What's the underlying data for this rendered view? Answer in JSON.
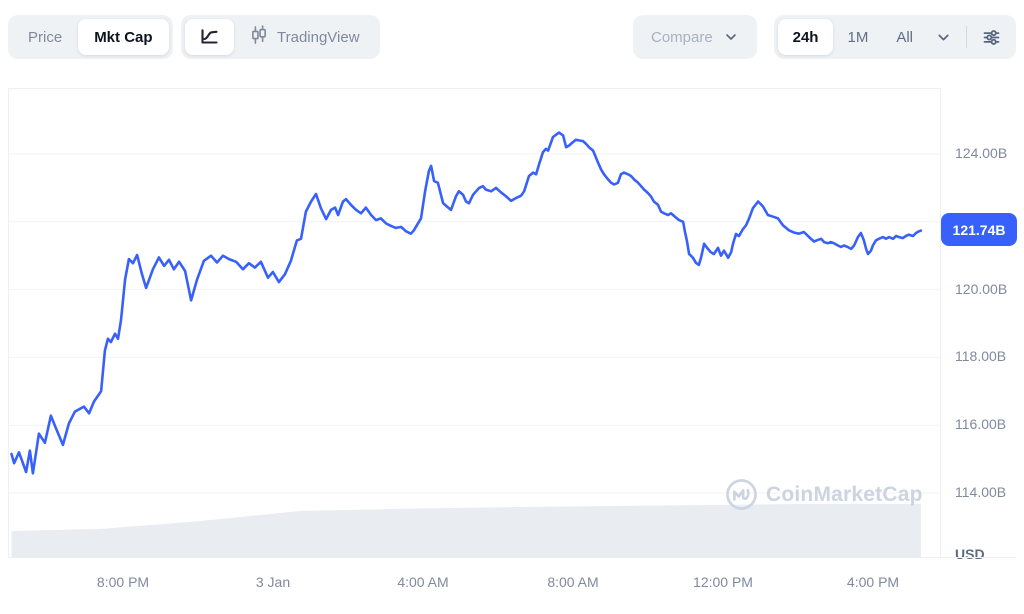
{
  "toolbar": {
    "metric_toggle": {
      "options": [
        "Price",
        "Mkt Cap"
      ],
      "active": "Mkt Cap"
    },
    "chart_style_toggle": {
      "active": "line-chart",
      "tradingview_label": "TradingView"
    },
    "compare": {
      "label": "Compare"
    },
    "range_selector": {
      "options": [
        "24h",
        "1M",
        "All"
      ],
      "active": "24h"
    }
  },
  "y_axis": {
    "ticks": [
      {
        "value": 124,
        "label": "124.00B"
      },
      {
        "value": 120,
        "label": "120.00B"
      },
      {
        "value": 118,
        "label": "118.00B"
      },
      {
        "value": 116,
        "label": "116.00B"
      },
      {
        "value": 114,
        "label": "114.00B"
      }
    ],
    "current": {
      "value": 121.74,
      "label": "121.74B"
    },
    "unit_label": "USD"
  },
  "watermark_text": "CoinMarketCap",
  "colors": {
    "line": "#3861fb",
    "badge_bg": "#3861fb",
    "grid": "#f0f2f5",
    "volume_fill": "#e9ecf1",
    "axis_text": "#808a9d",
    "pill_bg": "#eff2f5",
    "active_text": "#0d1421",
    "watermark": "#ccd4e0"
  },
  "chart_data": {
    "type": "line",
    "title": "Market cap, 24h range",
    "unit": "USD billions",
    "legend": "none",
    "grid": "horizontal",
    "ylim": [
      112.5,
      125.9
    ],
    "y_gridlines": [
      124,
      122,
      120,
      118,
      116,
      114
    ],
    "current_value": 121.74,
    "x_ticks": [
      {
        "h": 3,
        "label": "8:00 PM"
      },
      {
        "h": 7,
        "label": "3 Jan"
      },
      {
        "h": 11,
        "label": "4:00 AM"
      },
      {
        "h": 15,
        "label": "8:00 AM"
      },
      {
        "h": 19,
        "label": "12:00 PM"
      },
      {
        "h": 23,
        "label": "4:00 PM"
      }
    ],
    "x_unit": "hours since ~5:00 PM, 2 Jan",
    "points": [
      [
        0,
        115.15
      ],
      [
        0.07,
        114.88
      ],
      [
        0.2,
        115.2
      ],
      [
        0.39,
        114.62
      ],
      [
        0.49,
        115.25
      ],
      [
        0.57,
        114.58
      ],
      [
        0.73,
        115.75
      ],
      [
        0.89,
        115.48
      ],
      [
        1.05,
        116.28
      ],
      [
        1.19,
        115.9
      ],
      [
        1.37,
        115.42
      ],
      [
        1.53,
        116.05
      ],
      [
        1.69,
        116.4
      ],
      [
        1.85,
        116.5
      ],
      [
        1.93,
        116.55
      ],
      [
        2.07,
        116.35
      ],
      [
        2.2,
        116.7
      ],
      [
        2.39,
        117.0
      ],
      [
        2.49,
        118.2
      ],
      [
        2.57,
        118.55
      ],
      [
        2.65,
        118.45
      ],
      [
        2.76,
        118.7
      ],
      [
        2.84,
        118.55
      ],
      [
        2.92,
        119.1
      ],
      [
        3.03,
        120.3
      ],
      [
        3.13,
        120.9
      ],
      [
        3.24,
        120.78
      ],
      [
        3.35,
        121.02
      ],
      [
        3.48,
        120.45
      ],
      [
        3.59,
        120.05
      ],
      [
        3.77,
        120.6
      ],
      [
        3.93,
        120.95
      ],
      [
        4.07,
        120.7
      ],
      [
        4.2,
        120.88
      ],
      [
        4.33,
        120.6
      ],
      [
        4.47,
        120.82
      ],
      [
        4.63,
        120.55
      ],
      [
        4.79,
        119.68
      ],
      [
        4.95,
        120.3
      ],
      [
        5.13,
        120.85
      ],
      [
        5.32,
        121.0
      ],
      [
        5.48,
        120.8
      ],
      [
        5.64,
        121.0
      ],
      [
        5.8,
        120.9
      ],
      [
        5.99,
        120.82
      ],
      [
        6.17,
        120.6
      ],
      [
        6.33,
        120.78
      ],
      [
        6.49,
        120.65
      ],
      [
        6.65,
        120.82
      ],
      [
        6.84,
        120.35
      ],
      [
        6.97,
        120.52
      ],
      [
        7.13,
        120.22
      ],
      [
        7.29,
        120.45
      ],
      [
        7.45,
        120.85
      ],
      [
        7.61,
        121.45
      ],
      [
        7.72,
        121.5
      ],
      [
        7.85,
        122.3
      ],
      [
        7.99,
        122.6
      ],
      [
        8.12,
        122.82
      ],
      [
        8.25,
        122.4
      ],
      [
        8.39,
        122.08
      ],
      [
        8.52,
        122.35
      ],
      [
        8.63,
        122.42
      ],
      [
        8.71,
        122.2
      ],
      [
        8.84,
        122.6
      ],
      [
        8.92,
        122.67
      ],
      [
        9.05,
        122.5
      ],
      [
        9.19,
        122.35
      ],
      [
        9.32,
        122.25
      ],
      [
        9.45,
        122.42
      ],
      [
        9.59,
        122.2
      ],
      [
        9.72,
        122.05
      ],
      [
        9.85,
        122.1
      ],
      [
        9.99,
        121.95
      ],
      [
        10.12,
        121.88
      ],
      [
        10.25,
        121.82
      ],
      [
        10.39,
        121.85
      ],
      [
        10.52,
        121.72
      ],
      [
        10.65,
        121.65
      ],
      [
        10.73,
        121.75
      ],
      [
        10.81,
        121.9
      ],
      [
        10.92,
        122.1
      ],
      [
        11.03,
        122.9
      ],
      [
        11.13,
        123.5
      ],
      [
        11.19,
        123.65
      ],
      [
        11.27,
        123.2
      ],
      [
        11.37,
        123.15
      ],
      [
        11.51,
        122.55
      ],
      [
        11.61,
        122.45
      ],
      [
        11.72,
        122.35
      ],
      [
        11.85,
        122.75
      ],
      [
        11.93,
        122.9
      ],
      [
        12.04,
        122.8
      ],
      [
        12.12,
        122.6
      ],
      [
        12.2,
        122.55
      ],
      [
        12.31,
        122.8
      ],
      [
        12.39,
        122.9
      ],
      [
        12.47,
        123.0
      ],
      [
        12.57,
        123.05
      ],
      [
        12.65,
        122.95
      ],
      [
        12.79,
        122.9
      ],
      [
        12.92,
        123.0
      ],
      [
        13.05,
        122.87
      ],
      [
        13.19,
        122.75
      ],
      [
        13.32,
        122.62
      ],
      [
        13.45,
        122.7
      ],
      [
        13.59,
        122.77
      ],
      [
        13.67,
        122.9
      ],
      [
        13.8,
        123.35
      ],
      [
        13.91,
        123.45
      ],
      [
        13.99,
        123.4
      ],
      [
        14.07,
        123.7
      ],
      [
        14.17,
        124.05
      ],
      [
        14.25,
        124.15
      ],
      [
        14.31,
        124.1
      ],
      [
        14.44,
        124.5
      ],
      [
        14.6,
        124.63
      ],
      [
        14.71,
        124.55
      ],
      [
        14.79,
        124.2
      ],
      [
        14.87,
        124.25
      ],
      [
        14.97,
        124.35
      ],
      [
        15.05,
        124.42
      ],
      [
        15.13,
        124.4
      ],
      [
        15.24,
        124.38
      ],
      [
        15.32,
        124.3
      ],
      [
        15.4,
        124.2
      ],
      [
        15.51,
        124.1
      ],
      [
        15.64,
        123.75
      ],
      [
        15.72,
        123.55
      ],
      [
        15.8,
        123.4
      ],
      [
        15.91,
        123.25
      ],
      [
        15.99,
        123.15
      ],
      [
        16.07,
        123.1
      ],
      [
        16.17,
        123.15
      ],
      [
        16.25,
        123.4
      ],
      [
        16.33,
        123.45
      ],
      [
        16.44,
        123.4
      ],
      [
        16.52,
        123.35
      ],
      [
        16.6,
        123.25
      ],
      [
        16.71,
        123.15
      ],
      [
        16.79,
        123.05
      ],
      [
        16.87,
        122.95
      ],
      [
        16.97,
        122.85
      ],
      [
        17.05,
        122.75
      ],
      [
        17.13,
        122.6
      ],
      [
        17.24,
        122.5
      ],
      [
        17.32,
        122.3
      ],
      [
        17.4,
        122.25
      ],
      [
        17.51,
        122.2
      ],
      [
        17.59,
        122.25
      ],
      [
        17.67,
        122.17
      ],
      [
        17.8,
        122.05
      ],
      [
        17.91,
        122.0
      ],
      [
        17.96,
        121.7
      ],
      [
        18.01,
        121.44
      ],
      [
        18.07,
        121.05
      ],
      [
        18.17,
        120.94
      ],
      [
        18.25,
        120.79
      ],
      [
        18.33,
        120.73
      ],
      [
        18.39,
        120.95
      ],
      [
        18.47,
        121.35
      ],
      [
        18.57,
        121.2
      ],
      [
        18.65,
        121.1
      ],
      [
        18.73,
        121.05
      ],
      [
        18.84,
        121.23
      ],
      [
        18.92,
        121.0
      ],
      [
        19.0,
        121.15
      ],
      [
        19.11,
        120.94
      ],
      [
        19.19,
        121.1
      ],
      [
        19.24,
        121.35
      ],
      [
        19.32,
        121.64
      ],
      [
        19.4,
        121.58
      ],
      [
        19.51,
        121.79
      ],
      [
        19.59,
        121.9
      ],
      [
        19.67,
        122.1
      ],
      [
        19.77,
        122.4
      ],
      [
        19.91,
        122.6
      ],
      [
        20.04,
        122.45
      ],
      [
        20.17,
        122.2
      ],
      [
        20.31,
        122.15
      ],
      [
        20.44,
        122.1
      ],
      [
        20.57,
        121.9
      ],
      [
        20.73,
        121.75
      ],
      [
        20.87,
        121.68
      ],
      [
        21.0,
        121.65
      ],
      [
        21.13,
        121.7
      ],
      [
        21.27,
        121.55
      ],
      [
        21.4,
        121.42
      ],
      [
        21.51,
        121.47
      ],
      [
        21.59,
        121.5
      ],
      [
        21.67,
        121.4
      ],
      [
        21.77,
        121.37
      ],
      [
        21.85,
        121.4
      ],
      [
        21.93,
        121.37
      ],
      [
        22.04,
        121.3
      ],
      [
        22.12,
        121.26
      ],
      [
        22.2,
        121.3
      ],
      [
        22.31,
        121.25
      ],
      [
        22.39,
        121.2
      ],
      [
        22.47,
        121.3
      ],
      [
        22.57,
        121.55
      ],
      [
        22.65,
        121.67
      ],
      [
        22.73,
        121.45
      ],
      [
        22.79,
        121.2
      ],
      [
        22.84,
        121.05
      ],
      [
        22.92,
        121.15
      ],
      [
        22.97,
        121.3
      ],
      [
        23.05,
        121.45
      ],
      [
        23.13,
        121.5
      ],
      [
        23.24,
        121.55
      ],
      [
        23.32,
        121.5
      ],
      [
        23.4,
        121.55
      ],
      [
        23.51,
        121.5
      ],
      [
        23.59,
        121.58
      ],
      [
        23.67,
        121.55
      ],
      [
        23.77,
        121.52
      ],
      [
        23.85,
        121.58
      ],
      [
        23.93,
        121.62
      ],
      [
        24.04,
        121.58
      ],
      [
        24.12,
        121.67
      ],
      [
        24.2,
        121.72
      ],
      [
        24.25,
        121.74
      ]
    ],
    "volume_area": {
      "note": "unlabeled gray silhouette along bottom, relative height 0-1",
      "points": [
        [
          0,
          0.49
        ],
        [
          2.39,
          0.53
        ],
        [
          5.05,
          0.68
        ],
        [
          7.72,
          0.87
        ],
        [
          10.39,
          0.91
        ],
        [
          13.05,
          0.94
        ],
        [
          15.72,
          0.96
        ],
        [
          18.39,
          0.98
        ],
        [
          21.05,
          1.0
        ],
        [
          24.25,
          1.0
        ]
      ]
    }
  }
}
